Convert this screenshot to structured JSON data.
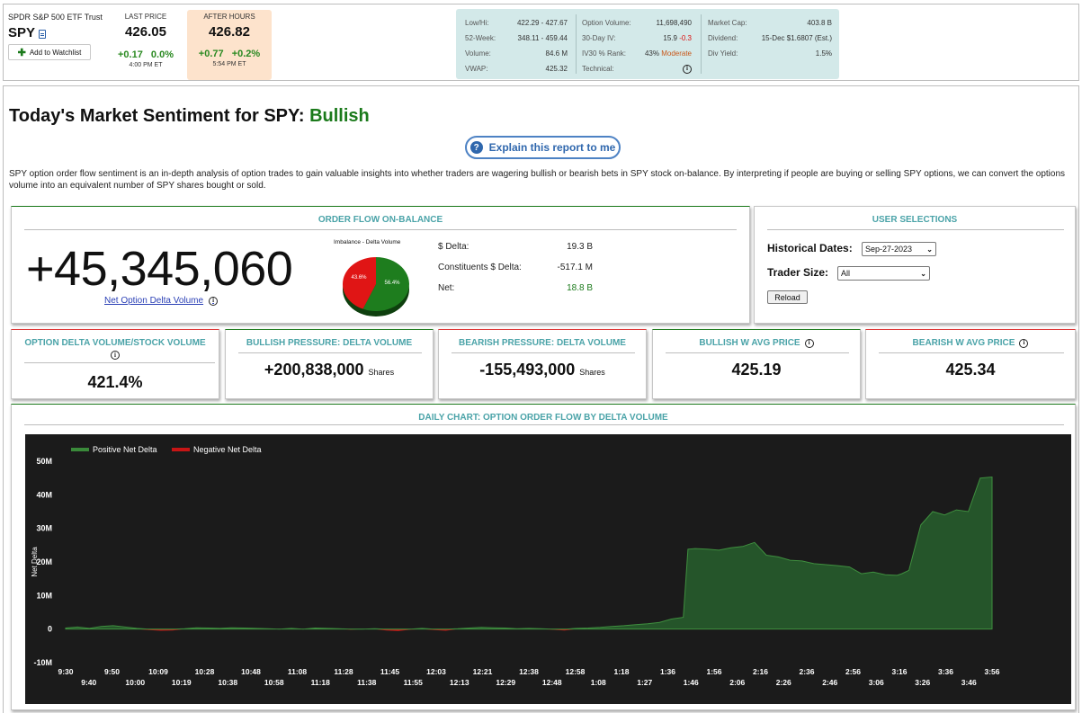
{
  "quote": {
    "name": "SPDR S&P 500 ETF Trust",
    "symbol": "SPY",
    "watchlist": "Add to Watchlist",
    "last": {
      "label": "LAST PRICE",
      "price": "426.05",
      "change": "+0.17",
      "pct": "0.0%",
      "time": "4:00 PM ET"
    },
    "after": {
      "label": "AFTER HOURS",
      "price": "426.82",
      "change": "+0.77",
      "pct": "+0.2%",
      "time": "5:54 PM ET"
    }
  },
  "stats": {
    "lowhigh_k": "Low/Hi:",
    "lowhigh_v": "422.29 - 427.67",
    "wk52_k": "52-Week:",
    "wk52_v": "348.11 - 459.44",
    "volume_k": "Volume:",
    "volume_v": "84.6 M",
    "vwap_k": "VWAP:",
    "vwap_v": "425.32",
    "optvol_k": "Option Volume:",
    "optvol_v": "11,698,490",
    "iv_k": "30-Day IV:",
    "iv_v": "15.9",
    "iv_chg": "-0.3",
    "ivrank_k": "IV30 % Rank:",
    "ivrank_v": "43%",
    "ivrank_word": "Moderate",
    "tech_k": "Technical:",
    "mcap_k": "Market Cap:",
    "mcap_v": "403.8 B",
    "div_k": "Dividend:",
    "div_v": "15-Dec $1.6807 (Est.)",
    "yield_k": "Div Yield:",
    "yield_v": "1.5%"
  },
  "page": {
    "title_prefix": "Today's Market Sentiment for SPY:",
    "sentiment": "Bullish",
    "explain": "Explain this report to me",
    "description": "SPY option order flow sentiment is an in-depth analysis of option trades to gain valuable insights into whether traders are wagering bullish or bearish bets in SPY stock on-balance. By interpreting if people are buying or selling SPY options, we can convert the options volume into an equivalent number of SPY shares bought or sold."
  },
  "orderflow": {
    "title": "ORDER FLOW ON-BALANCE",
    "big": "+45,345,060",
    "link": "Net Option Delta Volume",
    "pie_title": "Imbalance - Delta Volume",
    "pie": {
      "negative_pct": 43.6,
      "positive_pct": 56.4,
      "neg_label": "43.6%",
      "pos_label": "56.4%"
    },
    "delta_k": "$ Delta:",
    "delta_v": "19.3 B",
    "const_k": "Constituents $ Delta:",
    "const_v": "-517.1 M",
    "net_k": "Net:",
    "net_v": "18.8 B"
  },
  "user": {
    "title": "USER SELECTIONS",
    "hist_label": "Historical Dates:",
    "hist_value": "Sep-27-2023",
    "trader_label": "Trader Size:",
    "trader_value": "All",
    "reload": "Reload"
  },
  "cards": {
    "ratio_title": "OPTION DELTA VOLUME/STOCK VOLUME",
    "ratio_val": "421.4%",
    "bull_title": "BULLISH PRESSURE: DELTA VOLUME",
    "bull_val": "+200,838,000",
    "bull_unit": "Shares",
    "bear_title": "BEARISH PRESSURE: DELTA VOLUME",
    "bear_val": "-155,493,000",
    "bear_unit": "Shares",
    "bullavg_title": "BULLISH W AVG PRICE",
    "bullavg_val": "425.19",
    "bearavg_title": "BEARISH W AVG PRICE",
    "bearavg_val": "425.34"
  },
  "colors": {
    "positive": "#2b5f2b",
    "negative": "#c71515",
    "accent": "#4aa3a8"
  },
  "chart_data": {
    "type": "area",
    "title": "DAILY CHART: OPTION ORDER FLOW BY DELTA VOLUME",
    "ylabel": "Net Delta",
    "ylim": [
      -10,
      50
    ],
    "yticks": [
      "-10M",
      "0",
      "10M",
      "20M",
      "30M",
      "40M",
      "50M"
    ],
    "legend": "top-left",
    "series_names": [
      "Positive Net Delta",
      "Negative Net Delta"
    ],
    "xticks_top": [
      "9:30",
      "9:50",
      "10:09",
      "10:28",
      "10:48",
      "11:08",
      "11:28",
      "11:45",
      "12:03",
      "12:21",
      "12:38",
      "12:58",
      "1:18",
      "1:36",
      "1:56",
      "2:16",
      "2:36",
      "2:56",
      "3:16",
      "3:36",
      "3:56"
    ],
    "xticks_bottom": [
      "9:40",
      "10:00",
      "10:19",
      "10:38",
      "10:58",
      "11:18",
      "11:38",
      "11:55",
      "12:13",
      "12:29",
      "12:48",
      "1:08",
      "1:27",
      "1:46",
      "2:06",
      "2:26",
      "2:46",
      "3:06",
      "3:26",
      "3:46"
    ],
    "minutes": [
      0,
      5,
      10,
      15,
      20,
      25,
      30,
      35,
      40,
      45,
      50,
      55,
      60,
      65,
      70,
      75,
      80,
      85,
      90,
      95,
      100,
      105,
      110,
      115,
      120,
      125,
      130,
      135,
      140,
      145,
      150,
      155,
      160,
      165,
      170,
      175,
      180,
      185,
      190,
      195,
      200,
      205,
      210,
      215,
      220,
      225,
      230,
      235,
      240,
      245,
      250,
      255,
      260,
      262,
      265,
      270,
      275,
      280,
      285,
      290,
      295,
      300,
      305,
      310,
      315,
      320,
      325,
      330,
      335,
      340,
      345,
      350,
      352,
      355,
      360,
      365,
      370,
      375,
      380,
      385,
      390
    ],
    "values": [
      0.3,
      0.6,
      0.2,
      0.8,
      1.0,
      0.6,
      0.2,
      -0.3,
      -0.5,
      -0.4,
      0.1,
      0.4,
      0.3,
      0.2,
      0.4,
      0.3,
      0.2,
      0.1,
      0.0,
      0.2,
      -0.1,
      0.3,
      0.2,
      0.1,
      -0.2,
      0.0,
      0.1,
      -0.4,
      -0.6,
      -0.2,
      0.2,
      -0.3,
      -0.5,
      0.1,
      0.3,
      0.5,
      0.4,
      0.3,
      0.1,
      0.2,
      0.1,
      -0.2,
      -0.4,
      0.2,
      0.3,
      0.5,
      0.8,
      1.0,
      1.3,
      1.6,
      2.0,
      3.0,
      3.5,
      23.8,
      24.0,
      23.8,
      23.5,
      24.2,
      24.6,
      25.8,
      22.0,
      21.5,
      20.5,
      20.3,
      19.5,
      19.2,
      18.9,
      18.5,
      16.5,
      17.0,
      16.2,
      16.0,
      16.5,
      17.5,
      31.0,
      35.0,
      34.0,
      35.5,
      35.0,
      45.0,
      45.3
    ]
  }
}
